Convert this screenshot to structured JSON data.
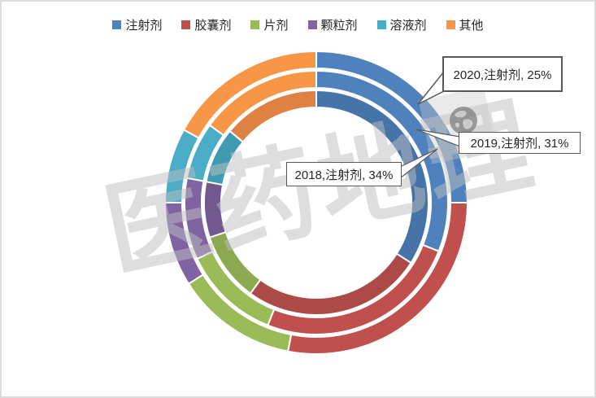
{
  "frame": {
    "background": "#FFFFFF",
    "border_color": "#DCDCDC"
  },
  "legend": {
    "position": "top",
    "items": [
      {
        "label": "注射剂",
        "color": "#4F81BD"
      },
      {
        "label": "胶囊剂",
        "color": "#C0504D"
      },
      {
        "label": "片剂",
        "color": "#9BBB59"
      },
      {
        "label": "颗粒剂",
        "color": "#8064A2"
      },
      {
        "label": "溶液剂",
        "color": "#4BACC6"
      },
      {
        "label": "其他",
        "color": "#F79646"
      }
    ]
  },
  "chart_data": {
    "type": "pie",
    "subtype": "multi-ring-doughnut",
    "title": "",
    "unit": "percent",
    "direction": "clockwise",
    "start_angle_deg": 0,
    "legend_position": "top",
    "categories": [
      "注射剂",
      "胶囊剂",
      "片剂",
      "颗粒剂",
      "溶液剂",
      "其他"
    ],
    "series": [
      {
        "name": "2018",
        "ring": "inner",
        "values": [
          34,
          26,
          10,
          8,
          8,
          14
        ],
        "colors": [
          "#4673A8",
          "#AC4A47",
          "#8CA951",
          "#73588F",
          "#3F9BB2",
          "#DE8244"
        ]
      },
      {
        "name": "2019",
        "ring": "middle",
        "values": [
          31,
          25,
          12,
          10,
          7,
          15
        ],
        "colors": [
          "#4F81BD",
          "#C0504D",
          "#9BBB59",
          "#8064A2",
          "#4BACC6",
          "#F79646"
        ]
      },
      {
        "name": "2020",
        "ring": "outer",
        "values": [
          25,
          28,
          13,
          9,
          8,
          17
        ],
        "colors": [
          "#4F81BD",
          "#C0504D",
          "#9BBB59",
          "#8064A2",
          "#4BACC6",
          "#F79646"
        ]
      }
    ],
    "labeled_points": [
      {
        "series": "2020",
        "category": "注射剂",
        "value_pct": 25
      },
      {
        "series": "2019",
        "category": "注射剂",
        "value_pct": 31
      },
      {
        "series": "2018",
        "category": "注射剂",
        "value_pct": 34
      }
    ]
  },
  "callouts": [
    {
      "label": "2020,注射剂, 25%"
    },
    {
      "label": "2019,注射剂, 31%"
    },
    {
      "label": "2018,注射剂, 34%"
    }
  ],
  "watermark": {
    "text": "医药地理",
    "globe_icon": "globe-icon"
  }
}
